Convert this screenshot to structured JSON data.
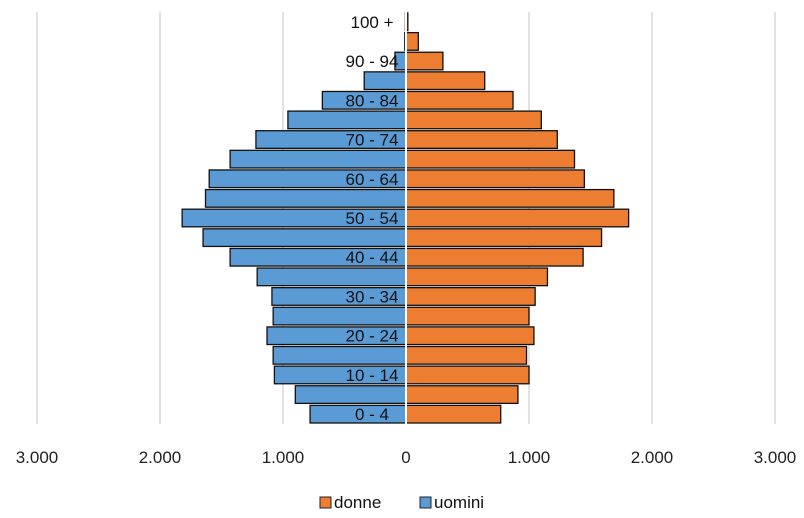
{
  "chart_data": {
    "type": "bar",
    "orientation": "horizontal-pyramid",
    "categories": [
      "0 - 4",
      "5 - 9",
      "10 - 14",
      "15 - 19",
      "20 - 24",
      "25 - 29",
      "30 - 34",
      "35 - 39",
      "40 - 44",
      "45 - 49",
      "50 - 54",
      "55 - 59",
      "60 - 64",
      "65 - 69",
      "70 - 74",
      "75 - 79",
      "80 - 84",
      "85 - 89",
      "90 - 94",
      "95 - 99",
      "100 +"
    ],
    "category_labels_shown": [
      "0 - 4",
      "",
      "10 - 14",
      "",
      "20 - 24",
      "",
      "30 - 34",
      "",
      "40 - 44",
      "",
      "50 - 54",
      "",
      "60 - 64",
      "",
      "70 - 74",
      "",
      "80 - 84",
      "",
      "90 - 94",
      "",
      "100 +"
    ],
    "series": [
      {
        "name": "donne",
        "side": "right",
        "color": "#ED7D31",
        "values": [
          770,
          910,
          1000,
          980,
          1040,
          1000,
          1050,
          1150,
          1440,
          1590,
          1810,
          1690,
          1450,
          1370,
          1230,
          1100,
          870,
          640,
          300,
          100,
          15
        ]
      },
      {
        "name": "uomini",
        "side": "left",
        "color": "#5B9BD5",
        "values": [
          780,
          900,
          1070,
          1080,
          1130,
          1080,
          1090,
          1210,
          1430,
          1650,
          1820,
          1630,
          1600,
          1430,
          1220,
          960,
          680,
          340,
          90,
          10,
          5
        ]
      }
    ],
    "x_ticks": [
      "3.000",
      "2.000",
      "1.000",
      "0",
      "1.000",
      "2.000",
      "3.000"
    ],
    "x_tick_values": [
      -3000,
      -2000,
      -1000,
      0,
      1000,
      2000,
      3000
    ],
    "xlim": [
      -3000,
      3000
    ],
    "grid": "vertical",
    "legend": {
      "position": "bottom",
      "items": [
        "donne",
        "uomini"
      ]
    }
  }
}
